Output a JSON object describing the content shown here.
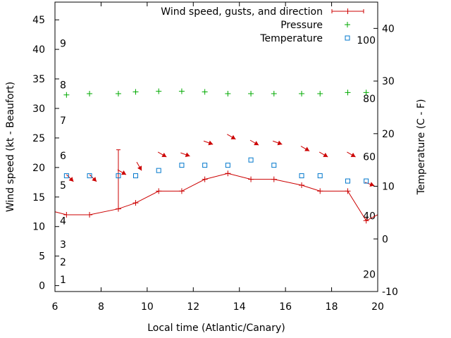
{
  "chart_data": {
    "type": "line",
    "xlabel": "Local time (Atlantic/Canary)",
    "ylabel": "Wind speed (kt - Beaufort)",
    "y2label": "Temperature (C - F)",
    "xlim": [
      6,
      20
    ],
    "ylim": [
      -1,
      48
    ],
    "y2lim": [
      -10,
      45
    ],
    "x_ticks": [
      "6",
      "8",
      "10",
      "12",
      "14",
      "16",
      "18",
      "20"
    ],
    "y_ticks": [
      "0",
      "5",
      "10",
      "15",
      "20",
      "25",
      "30",
      "35",
      "40",
      "45"
    ],
    "y2_ticks": [
      "-10",
      "0",
      "10",
      "20",
      "30",
      "40"
    ],
    "beaufort_labels": [
      {
        "label": "1",
        "kt": 1
      },
      {
        "label": "2",
        "kt": 4
      },
      {
        "label": "3",
        "kt": 7
      },
      {
        "label": "4",
        "kt": 11
      },
      {
        "label": "5",
        "kt": 17
      },
      {
        "label": "6",
        "kt": 22
      },
      {
        "label": "7",
        "kt": 28
      },
      {
        "label": "8",
        "kt": 34
      },
      {
        "label": "9",
        "kt": 41
      }
    ],
    "fahrenheit_labels": [
      {
        "label": "20",
        "celsius": -6.7
      },
      {
        "label": "40",
        "celsius": 4.4
      },
      {
        "label": "60",
        "celsius": 15.6
      },
      {
        "label": "80",
        "celsius": 26.7
      },
      {
        "label": "100",
        "celsius": 37.8
      }
    ],
    "legend": {
      "position": "top-right",
      "entries": [
        "Wind speed, gusts, and direction",
        "Pressure",
        "Temperature"
      ]
    },
    "series": [
      {
        "name": "Wind speed, gusts, and direction",
        "color": "#cc0000",
        "x": [
          6.0,
          6.5,
          7.5,
          8.75,
          9.5,
          10.5,
          11.5,
          12.5,
          13.5,
          14.5,
          15.5,
          16.7,
          17.5,
          18.7,
          19.5,
          20.0
        ],
        "y": [
          12.5,
          12,
          12,
          13,
          14,
          16,
          16,
          18,
          19,
          18,
          18,
          17,
          16,
          16,
          11,
          12
        ],
        "gusts": [
          {
            "x": 8.75,
            "y": 23
          }
        ],
        "directions": [
          {
            "x": 6.5,
            "deg": 315
          },
          {
            "x": 7.5,
            "deg": 315
          },
          {
            "x": 8.75,
            "deg": 300
          },
          {
            "x": 9.5,
            "deg": 330
          },
          {
            "x": 10.5,
            "deg": 300
          },
          {
            "x": 11.5,
            "deg": 290
          },
          {
            "x": 12.5,
            "deg": 290
          },
          {
            "x": 13.5,
            "deg": 300
          },
          {
            "x": 14.5,
            "deg": 300
          },
          {
            "x": 15.5,
            "deg": 290
          },
          {
            "x": 16.7,
            "deg": 300
          },
          {
            "x": 17.5,
            "deg": 300
          },
          {
            "x": 18.7,
            "deg": 300
          },
          {
            "x": 19.5,
            "deg": 290
          }
        ]
      },
      {
        "name": "Pressure",
        "color": "#00aa00",
        "marker": "+",
        "x": [
          6.5,
          7.5,
          8.75,
          9.5,
          10.5,
          11.5,
          12.5,
          13.5,
          14.5,
          15.5,
          16.7,
          17.5,
          18.7,
          19.5
        ],
        "y": [
          32.3,
          32.5,
          32.5,
          32.8,
          32.9,
          32.9,
          32.8,
          32.5,
          32.5,
          32.5,
          32.5,
          32.5,
          32.7,
          32.7
        ]
      },
      {
        "name": "Temperature",
        "color": "#0077cc",
        "marker": "square",
        "axis": "y2",
        "x": [
          6.5,
          7.5,
          8.75,
          9.5,
          10.5,
          11.5,
          12.5,
          13.5,
          14.5,
          15.5,
          16.7,
          17.5,
          18.7,
          19.5
        ],
        "y": [
          12,
          12,
          12,
          12,
          13,
          14,
          14,
          14,
          15,
          14,
          12,
          12,
          11,
          11
        ]
      }
    ]
  }
}
